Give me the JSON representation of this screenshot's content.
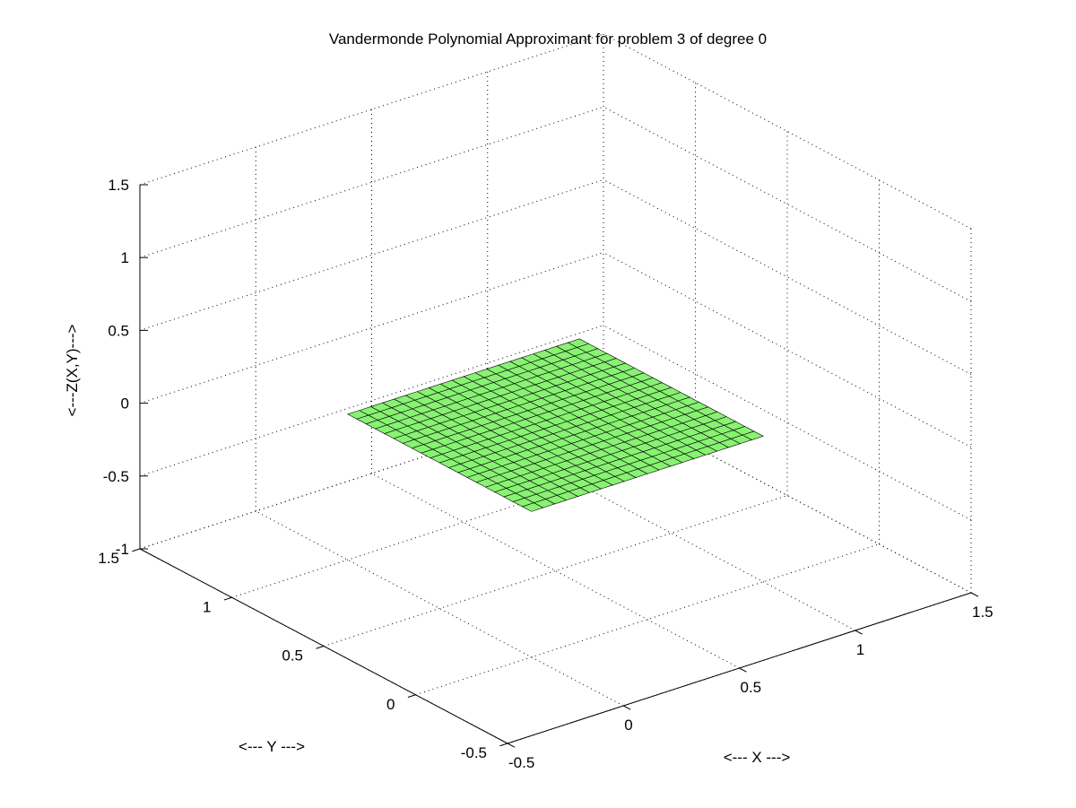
{
  "chart_data": {
    "type": "surface",
    "title": "Vandermonde Polynomial Approximant for problem 3 of degree 0",
    "xlabel": "<--- X --->",
    "ylabel": "<--- Y --->",
    "zlabel": "<---Z(X,Y)--->",
    "xlim": [
      -0.5,
      1.5
    ],
    "ylim": [
      -0.5,
      1.5
    ],
    "zlim": [
      -1,
      1.5
    ],
    "x_ticks": [
      "-0.5",
      "0",
      "0.5",
      "1",
      "1.5"
    ],
    "y_ticks": [
      "-0.5",
      "0",
      "0.5",
      "1",
      "1.5"
    ],
    "z_ticks": [
      "-1",
      "-0.5",
      "0",
      "0.5",
      "1",
      "1.5"
    ],
    "grid": true,
    "surface": {
      "x_range": [
        0,
        1
      ],
      "y_range": [
        0,
        1
      ],
      "z_value": 0,
      "mesh_divisions": 20,
      "face_color": "#88f272",
      "edge_color": "#000000"
    }
  }
}
